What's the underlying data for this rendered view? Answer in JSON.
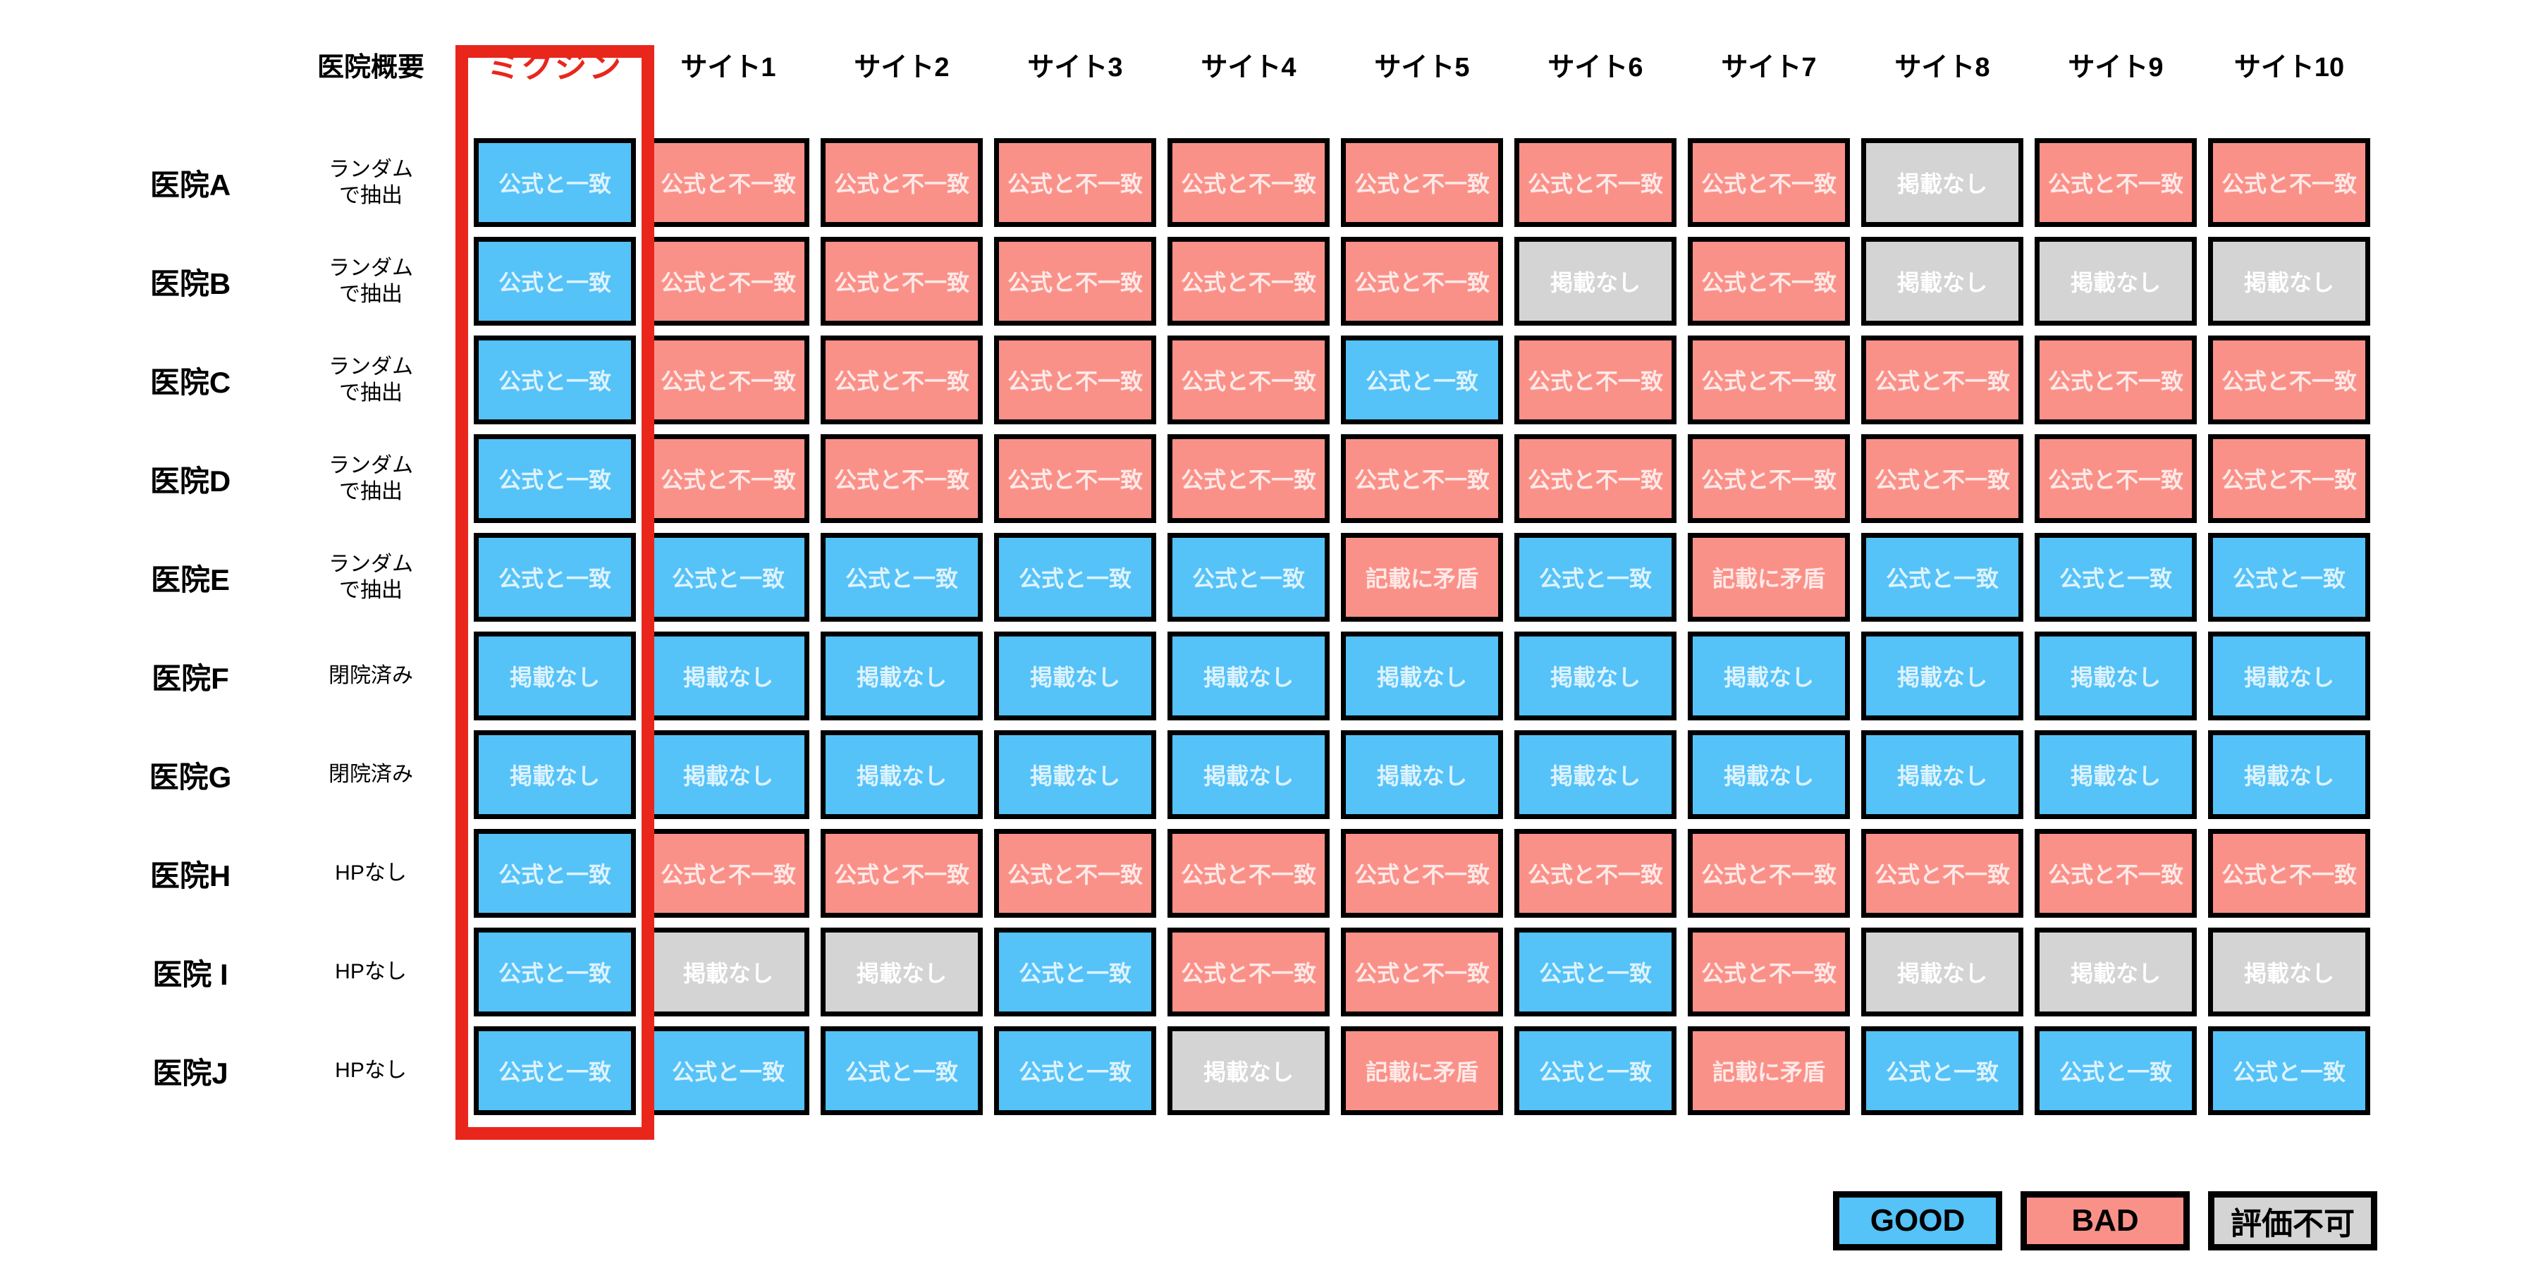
{
  "chart_data": {
    "type": "table",
    "corner_header": "医院概要",
    "highlight_column": "ミクジン",
    "site_columns": [
      "サイト1",
      "サイト2",
      "サイト3",
      "サイト4",
      "サイト5",
      "サイト6",
      "サイト7",
      "サイト8",
      "サイト9",
      "サイト10"
    ],
    "cell_labels_used": [
      "公式と一致",
      "公式と不一致",
      "掲載なし",
      "記載に矛盾"
    ],
    "rows": [
      {
        "name": "医院A",
        "desc": "ランダム\nで抽出",
        "cells": [
          {
            "label": "公式と一致",
            "status": "good"
          },
          {
            "label": "公式と不一致",
            "status": "bad"
          },
          {
            "label": "公式と不一致",
            "status": "bad"
          },
          {
            "label": "公式と不一致",
            "status": "bad"
          },
          {
            "label": "公式と不一致",
            "status": "bad"
          },
          {
            "label": "公式と不一致",
            "status": "bad"
          },
          {
            "label": "公式と不一致",
            "status": "bad"
          },
          {
            "label": "公式と不一致",
            "status": "bad"
          },
          {
            "label": "掲載なし",
            "status": "na"
          },
          {
            "label": "公式と不一致",
            "status": "bad"
          },
          {
            "label": "公式と不一致",
            "status": "bad"
          }
        ]
      },
      {
        "name": "医院B",
        "desc": "ランダム\nで抽出",
        "cells": [
          {
            "label": "公式と一致",
            "status": "good"
          },
          {
            "label": "公式と不一致",
            "status": "bad"
          },
          {
            "label": "公式と不一致",
            "status": "bad"
          },
          {
            "label": "公式と不一致",
            "status": "bad"
          },
          {
            "label": "公式と不一致",
            "status": "bad"
          },
          {
            "label": "公式と不一致",
            "status": "bad"
          },
          {
            "label": "掲載なし",
            "status": "na"
          },
          {
            "label": "公式と不一致",
            "status": "bad"
          },
          {
            "label": "掲載なし",
            "status": "na"
          },
          {
            "label": "掲載なし",
            "status": "na"
          },
          {
            "label": "掲載なし",
            "status": "na"
          }
        ]
      },
      {
        "name": "医院C",
        "desc": "ランダム\nで抽出",
        "cells": [
          {
            "label": "公式と一致",
            "status": "good"
          },
          {
            "label": "公式と不一致",
            "status": "bad"
          },
          {
            "label": "公式と不一致",
            "status": "bad"
          },
          {
            "label": "公式と不一致",
            "status": "bad"
          },
          {
            "label": "公式と不一致",
            "status": "bad"
          },
          {
            "label": "公式と一致",
            "status": "good"
          },
          {
            "label": "公式と不一致",
            "status": "bad"
          },
          {
            "label": "公式と不一致",
            "status": "bad"
          },
          {
            "label": "公式と不一致",
            "status": "bad"
          },
          {
            "label": "公式と不一致",
            "status": "bad"
          },
          {
            "label": "公式と不一致",
            "status": "bad"
          }
        ]
      },
      {
        "name": "医院D",
        "desc": "ランダム\nで抽出",
        "cells": [
          {
            "label": "公式と一致",
            "status": "good"
          },
          {
            "label": "公式と不一致",
            "status": "bad"
          },
          {
            "label": "公式と不一致",
            "status": "bad"
          },
          {
            "label": "公式と不一致",
            "status": "bad"
          },
          {
            "label": "公式と不一致",
            "status": "bad"
          },
          {
            "label": "公式と不一致",
            "status": "bad"
          },
          {
            "label": "公式と不一致",
            "status": "bad"
          },
          {
            "label": "公式と不一致",
            "status": "bad"
          },
          {
            "label": "公式と不一致",
            "status": "bad"
          },
          {
            "label": "公式と不一致",
            "status": "bad"
          },
          {
            "label": "公式と不一致",
            "status": "bad"
          }
        ]
      },
      {
        "name": "医院E",
        "desc": "ランダム\nで抽出",
        "cells": [
          {
            "label": "公式と一致",
            "status": "good"
          },
          {
            "label": "公式と一致",
            "status": "good"
          },
          {
            "label": "公式と一致",
            "status": "good"
          },
          {
            "label": "公式と一致",
            "status": "good"
          },
          {
            "label": "公式と一致",
            "status": "good"
          },
          {
            "label": "記載に矛盾",
            "status": "bad"
          },
          {
            "label": "公式と一致",
            "status": "good"
          },
          {
            "label": "記載に矛盾",
            "status": "bad"
          },
          {
            "label": "公式と一致",
            "status": "good"
          },
          {
            "label": "公式と一致",
            "status": "good"
          },
          {
            "label": "公式と一致",
            "status": "good"
          }
        ]
      },
      {
        "name": "医院F",
        "desc": "閉院済み",
        "cells": [
          {
            "label": "掲載なし",
            "status": "good"
          },
          {
            "label": "掲載なし",
            "status": "good"
          },
          {
            "label": "掲載なし",
            "status": "good"
          },
          {
            "label": "掲載なし",
            "status": "good"
          },
          {
            "label": "掲載なし",
            "status": "good"
          },
          {
            "label": "掲載なし",
            "status": "good"
          },
          {
            "label": "掲載なし",
            "status": "good"
          },
          {
            "label": "掲載なし",
            "status": "good"
          },
          {
            "label": "掲載なし",
            "status": "good"
          },
          {
            "label": "掲載なし",
            "status": "good"
          },
          {
            "label": "掲載なし",
            "status": "good"
          }
        ]
      },
      {
        "name": "医院G",
        "desc": "閉院済み",
        "cells": [
          {
            "label": "掲載なし",
            "status": "good"
          },
          {
            "label": "掲載なし",
            "status": "good"
          },
          {
            "label": "掲載なし",
            "status": "good"
          },
          {
            "label": "掲載なし",
            "status": "good"
          },
          {
            "label": "掲載なし",
            "status": "good"
          },
          {
            "label": "掲載なし",
            "status": "good"
          },
          {
            "label": "掲載なし",
            "status": "good"
          },
          {
            "label": "掲載なし",
            "status": "good"
          },
          {
            "label": "掲載なし",
            "status": "good"
          },
          {
            "label": "掲載なし",
            "status": "good"
          },
          {
            "label": "掲載なし",
            "status": "good"
          }
        ]
      },
      {
        "name": "医院H",
        "desc": "HPなし",
        "cells": [
          {
            "label": "公式と一致",
            "status": "good"
          },
          {
            "label": "公式と不一致",
            "status": "bad"
          },
          {
            "label": "公式と不一致",
            "status": "bad"
          },
          {
            "label": "公式と不一致",
            "status": "bad"
          },
          {
            "label": "公式と不一致",
            "status": "bad"
          },
          {
            "label": "公式と不一致",
            "status": "bad"
          },
          {
            "label": "公式と不一致",
            "status": "bad"
          },
          {
            "label": "公式と不一致",
            "status": "bad"
          },
          {
            "label": "公式と不一致",
            "status": "bad"
          },
          {
            "label": "公式と不一致",
            "status": "bad"
          },
          {
            "label": "公式と不一致",
            "status": "bad"
          }
        ]
      },
      {
        "name": "医院 I",
        "desc": "HPなし",
        "cells": [
          {
            "label": "公式と一致",
            "status": "good"
          },
          {
            "label": "掲載なし",
            "status": "na"
          },
          {
            "label": "掲載なし",
            "status": "na"
          },
          {
            "label": "公式と一致",
            "status": "good"
          },
          {
            "label": "公式と不一致",
            "status": "bad"
          },
          {
            "label": "公式と不一致",
            "status": "bad"
          },
          {
            "label": "公式と一致",
            "status": "good"
          },
          {
            "label": "公式と不一致",
            "status": "bad"
          },
          {
            "label": "掲載なし",
            "status": "na"
          },
          {
            "label": "掲載なし",
            "status": "na"
          },
          {
            "label": "掲載なし",
            "status": "na"
          }
        ]
      },
      {
        "name": "医院J",
        "desc": "HPなし",
        "cells": [
          {
            "label": "公式と一致",
            "status": "good"
          },
          {
            "label": "公式と一致",
            "status": "good"
          },
          {
            "label": "公式と一致",
            "status": "good"
          },
          {
            "label": "公式と一致",
            "status": "good"
          },
          {
            "label": "掲載なし",
            "status": "na"
          },
          {
            "label": "記載に矛盾",
            "status": "bad"
          },
          {
            "label": "公式と一致",
            "status": "good"
          },
          {
            "label": "記載に矛盾",
            "status": "bad"
          },
          {
            "label": "公式と一致",
            "status": "good"
          },
          {
            "label": "公式と一致",
            "status": "good"
          },
          {
            "label": "公式と一致",
            "status": "good"
          }
        ]
      }
    ]
  },
  "legend": [
    {
      "label": "GOOD",
      "status": "good"
    },
    {
      "label": "BAD",
      "status": "bad"
    },
    {
      "label": "評価不可",
      "status": "na"
    }
  ],
  "colors": {
    "good": "#55C2F8",
    "bad": "#FA9189",
    "na": "#D4D4D4",
    "highlight": "#E8261C"
  }
}
